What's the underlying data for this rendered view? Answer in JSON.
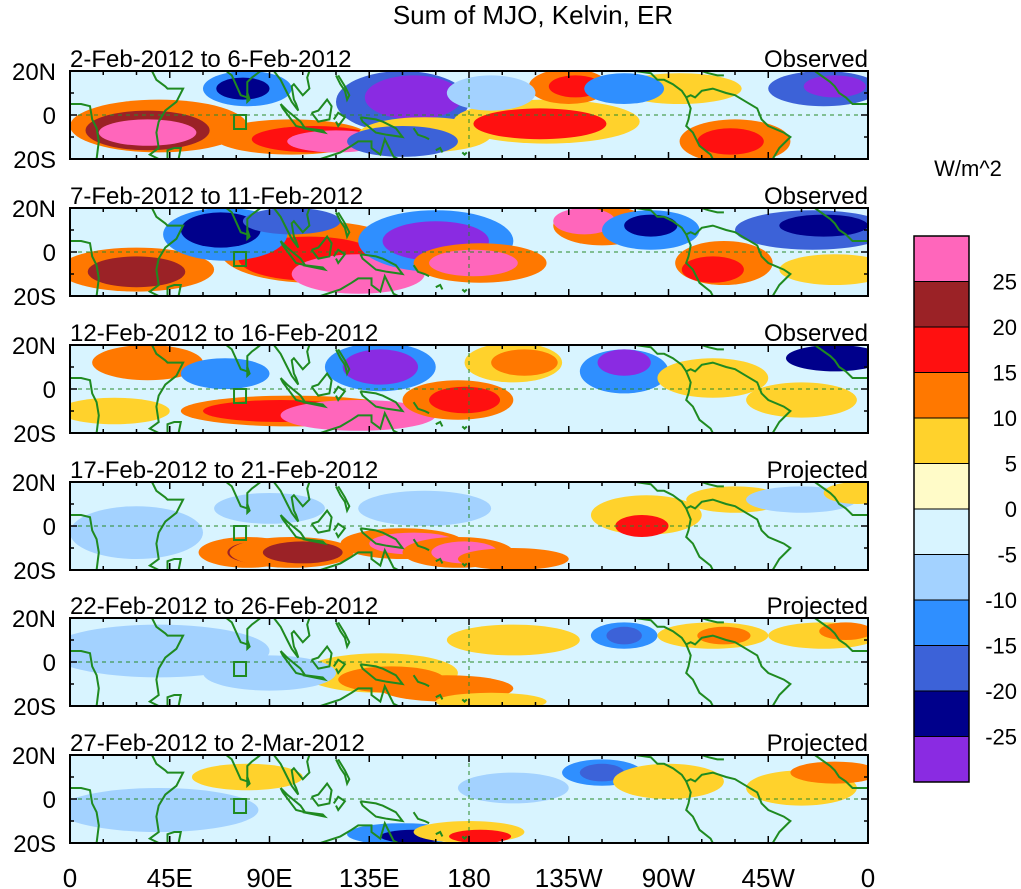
{
  "chart_data": {
    "type": "heatmap",
    "title": "Sum of MJO, Kelvin, ER",
    "units_label": "W/m^2",
    "x_ticks": [
      "0",
      "45E",
      "90E",
      "135E",
      "180",
      "135W",
      "90W",
      "45W",
      "0"
    ],
    "x_tick_degrees": [
      0,
      45,
      90,
      135,
      180,
      225,
      270,
      315,
      360
    ],
    "y_ticks": [
      "20N",
      "0",
      "20S"
    ],
    "y_tick_degrees": [
      20,
      0,
      -20
    ],
    "xlim": [
      0,
      360
    ],
    "ylim": [
      -20,
      20
    ],
    "colorbar": {
      "levels": [
        "25",
        "20",
        "15",
        "10",
        "5",
        "0",
        "-5",
        "-10",
        "-15",
        "-20",
        "-25"
      ],
      "colors": [
        "#ff66bb",
        "#9b2226",
        "#ff1010",
        "#ff7800",
        "#ffd22c",
        "#fffbc8",
        "#d8f4ff",
        "#a3d2ff",
        "#2f8fff",
        "#3c62d8",
        "#00008b",
        "#8a2be2"
      ]
    },
    "panels": [
      {
        "period": "2-Feb-2012 to 6-Feb-2012",
        "status": "Observed"
      },
      {
        "period": "7-Feb-2012 to 11-Feb-2012",
        "status": "Observed"
      },
      {
        "period": "12-Feb-2012 to 16-Feb-2012",
        "status": "Observed"
      },
      {
        "period": "17-Feb-2012 to 21-Feb-2012",
        "status": "Projected"
      },
      {
        "period": "22-Feb-2012 to 26-Feb-2012",
        "status": "Projected"
      },
      {
        "period": "27-Feb-2012 to 2-Mar-2012",
        "status": "Projected"
      }
    ]
  }
}
